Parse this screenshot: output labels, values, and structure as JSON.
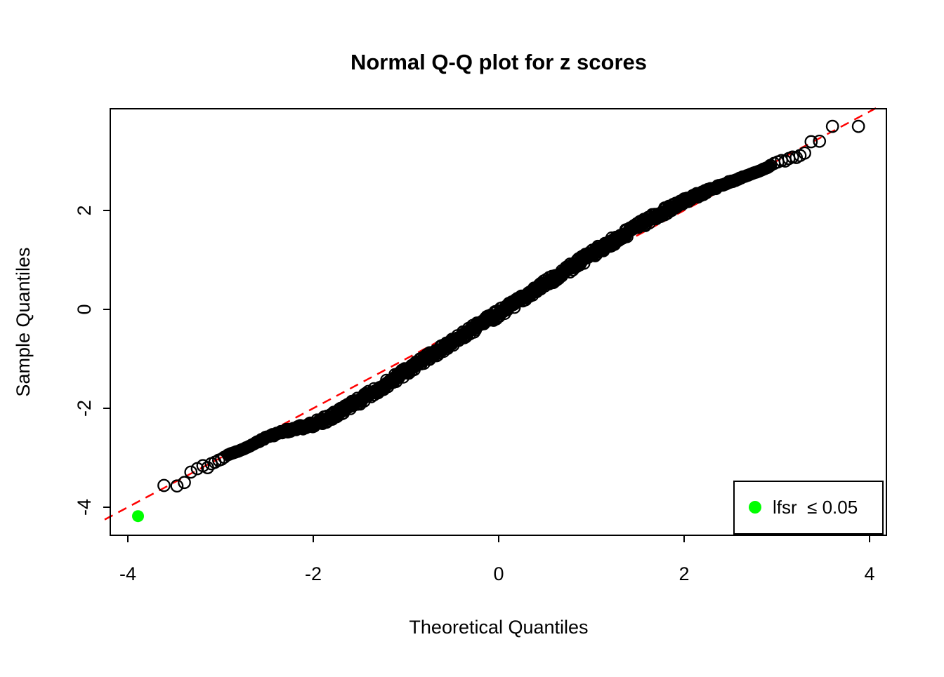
{
  "title": "Normal Q-Q plot for z scores",
  "x_axis": {
    "label": "Theoretical Quantiles",
    "ticks": [
      -4,
      -2,
      0,
      2,
      4
    ]
  },
  "y_axis": {
    "label": "Sample Quantiles",
    "ticks": [
      2,
      0,
      -2,
      -4
    ]
  },
  "legend": {
    "label": "lfsr  ≤ 0.05",
    "marker_color": "#00FF00"
  },
  "colors": {
    "background": "#ffffff",
    "points": "#000000",
    "reference_line": "#FF0000",
    "significant_point": "#00FF00"
  },
  "chart_data": {
    "type": "scatter",
    "title": "Normal Q-Q plot for z scores",
    "xlabel": "Theoretical Quantiles",
    "ylabel": "Sample Quantiles",
    "xlim": [
      -4.2,
      4.2
    ],
    "ylim": [
      -4.6,
      4.1
    ],
    "grid": false,
    "legend_position": "bottom-right",
    "reference_line": {
      "style": "dashed",
      "color": "#FF0000",
      "slope": 1,
      "intercept": 0,
      "x_range": [
        -4.25,
        4.07
      ]
    },
    "significant_point": {
      "x": -3.89,
      "y": -4.18,
      "color": "#00FF00",
      "legend": "lfsr ≤ 0.05"
    },
    "lower_tail_points": [
      [
        -3.61,
        -3.56
      ],
      [
        -3.47,
        -3.57
      ],
      [
        -3.39,
        -3.5
      ],
      [
        -3.32,
        -3.29
      ],
      [
        -3.25,
        -3.22
      ],
      [
        -3.19,
        -3.16
      ],
      [
        -3.14,
        -3.2
      ],
      [
        -3.1,
        -3.12
      ],
      [
        -3.06,
        -3.09
      ],
      [
        -3.02,
        -3.05
      ],
      [
        -2.99,
        -3.03
      ],
      [
        -2.96,
        -2.99
      ]
    ],
    "upper_tail_points": [
      [
        2.93,
        2.91
      ],
      [
        2.97,
        2.95
      ],
      [
        3.01,
        2.98
      ],
      [
        3.05,
        3.01
      ],
      [
        3.09,
        3.0
      ],
      [
        3.13,
        3.05
      ],
      [
        3.17,
        3.08
      ],
      [
        3.21,
        3.07
      ],
      [
        3.25,
        3.11
      ],
      [
        3.3,
        3.16
      ],
      [
        3.37,
        3.39
      ],
      [
        3.46,
        3.4
      ],
      [
        3.6,
        3.7
      ],
      [
        3.88,
        3.7
      ]
    ],
    "dense_band_centerline": [
      [
        -2.92,
        -2.94
      ],
      [
        -2.8,
        -2.86
      ],
      [
        -2.7,
        -2.78
      ],
      [
        -2.6,
        -2.68
      ],
      [
        -2.5,
        -2.58
      ],
      [
        -2.4,
        -2.52
      ],
      [
        -2.3,
        -2.46
      ],
      [
        -2.2,
        -2.42
      ],
      [
        -2.1,
        -2.37
      ],
      [
        -2.0,
        -2.32
      ],
      [
        -1.9,
        -2.25
      ],
      [
        -1.8,
        -2.17
      ],
      [
        -1.7,
        -2.07
      ],
      [
        -1.6,
        -1.96
      ],
      [
        -1.5,
        -1.85
      ],
      [
        -1.4,
        -1.73
      ],
      [
        -1.3,
        -1.61
      ],
      [
        -1.2,
        -1.49
      ],
      [
        -1.1,
        -1.37
      ],
      [
        -1.0,
        -1.26
      ],
      [
        -0.9,
        -1.14
      ],
      [
        -0.8,
        -1.02
      ],
      [
        -0.7,
        -0.9
      ],
      [
        -0.6,
        -0.78
      ],
      [
        -0.5,
        -0.66
      ],
      [
        -0.4,
        -0.54
      ],
      [
        -0.3,
        -0.42
      ],
      [
        -0.2,
        -0.31
      ],
      [
        -0.1,
        -0.2
      ],
      [
        0.0,
        -0.08
      ],
      [
        0.1,
        0.03
      ],
      [
        0.2,
        0.15
      ],
      [
        0.3,
        0.27
      ],
      [
        0.4,
        0.39
      ],
      [
        0.5,
        0.51
      ],
      [
        0.6,
        0.63
      ],
      [
        0.7,
        0.75
      ],
      [
        0.8,
        0.87
      ],
      [
        0.9,
        0.99
      ],
      [
        1.0,
        1.11
      ],
      [
        1.1,
        1.23
      ],
      [
        1.2,
        1.34
      ],
      [
        1.3,
        1.45
      ],
      [
        1.4,
        1.57
      ],
      [
        1.5,
        1.68
      ],
      [
        1.6,
        1.79
      ],
      [
        1.7,
        1.89
      ],
      [
        1.8,
        1.99
      ],
      [
        1.9,
        2.09
      ],
      [
        2.0,
        2.18
      ],
      [
        2.1,
        2.27
      ],
      [
        2.2,
        2.35
      ],
      [
        2.3,
        2.43
      ],
      [
        2.4,
        2.51
      ],
      [
        2.5,
        2.58
      ],
      [
        2.6,
        2.65
      ],
      [
        2.7,
        2.72
      ],
      [
        2.8,
        2.79
      ],
      [
        2.9,
        2.87
      ],
      [
        2.92,
        2.89
      ]
    ],
    "band_x_range": [
      -2.92,
      2.92
    ],
    "band_halfwidth_data_units": 0.21
  }
}
